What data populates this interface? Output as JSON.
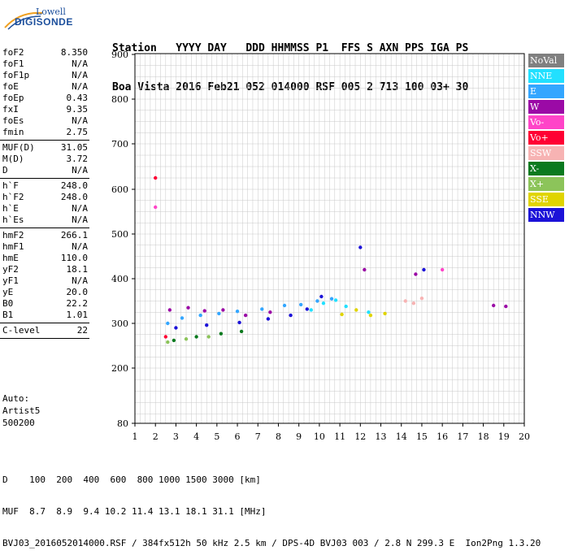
{
  "logo": {
    "line1": "Lowell",
    "line2": "DIGISONDE"
  },
  "header": {
    "labels": "Station   YYYY DAY   DDD HHMMSS P1  FFS S AXN PPS IGA PS",
    "values": "Boa Vista 2016 Feb21 052 014000 RSF 005 2 713 100 03+ 30"
  },
  "params": {
    "group1": [
      {
        "label": "foF2",
        "value": "8.350"
      },
      {
        "label": "foF1",
        "value": "N/A"
      },
      {
        "label": "foF1p",
        "value": "N/A"
      },
      {
        "label": "foE",
        "value": "N/A"
      },
      {
        "label": "foEp",
        "value": "0.43"
      },
      {
        "label": "fxI",
        "value": "9.35"
      },
      {
        "label": "foEs",
        "value": "N/A"
      },
      {
        "label": "fmin",
        "value": "2.75"
      }
    ],
    "group2": [
      {
        "label": "MUF(D)",
        "value": "31.05"
      },
      {
        "label": "M(D)",
        "value": "3.72"
      },
      {
        "label": "D",
        "value": "N/A"
      }
    ],
    "group3": [
      {
        "label": "h`F",
        "value": "248.0"
      },
      {
        "label": "h`F2",
        "value": "248.0"
      },
      {
        "label": "h`E",
        "value": "N/A"
      },
      {
        "label": "h`Es",
        "value": "N/A"
      }
    ],
    "group4": [
      {
        "label": "hmF2",
        "value": "266.1"
      },
      {
        "label": "hmF1",
        "value": "N/A"
      },
      {
        "label": "hmE",
        "value": "110.0"
      },
      {
        "label": "yF2",
        "value": "18.1"
      },
      {
        "label": "yF1",
        "value": "N/A"
      },
      {
        "label": "yE",
        "value": "20.0"
      },
      {
        "label": "B0",
        "value": "22.2"
      },
      {
        "label": "B1",
        "value": "1.01"
      }
    ],
    "group5": [
      {
        "label": "C-level",
        "value": "22"
      }
    ]
  },
  "auto": {
    "line1": "Auto:",
    "line2": "Artist5",
    "line3": "500200"
  },
  "chart_data": {
    "type": "scatter",
    "x_ticks": [
      "1",
      "2",
      "3",
      "4",
      "5",
      "6",
      "7",
      "8",
      "9",
      "10",
      "11",
      "12",
      "13",
      "14",
      "15",
      "16",
      "17",
      "18",
      "19",
      "20"
    ],
    "y_ticks": [
      "80",
      "200",
      "300",
      "400",
      "500",
      "600",
      "700",
      "800",
      "900"
    ],
    "xlim": [
      1,
      20
    ],
    "y_tick_values": [
      80,
      200,
      300,
      400,
      500,
      600,
      700,
      800,
      900
    ],
    "grid": true,
    "series": [
      {
        "name": "NoVal",
        "color": "#808080",
        "points": []
      },
      {
        "name": "NNE",
        "color": "#22e0ff",
        "points": [
          [
            9.6,
            330
          ],
          [
            10.2,
            345
          ],
          [
            10.8,
            352
          ],
          [
            11.3,
            338
          ],
          [
            12.4,
            325
          ]
        ]
      },
      {
        "name": "E",
        "color": "#33a6ff",
        "points": [
          [
            2.6,
            300
          ],
          [
            3.3,
            312
          ],
          [
            4.2,
            318
          ],
          [
            5.1,
            322
          ],
          [
            6.0,
            327
          ],
          [
            7.2,
            332
          ],
          [
            8.3,
            340
          ],
          [
            9.1,
            342
          ],
          [
            9.9,
            350
          ],
          [
            10.6,
            355
          ]
        ]
      },
      {
        "name": "W",
        "color": "#9b0aa6",
        "points": [
          [
            2.7,
            330
          ],
          [
            3.6,
            335
          ],
          [
            4.4,
            328
          ],
          [
            5.3,
            330
          ],
          [
            6.4,
            318
          ],
          [
            7.6,
            325
          ],
          [
            12.2,
            420
          ],
          [
            14.7,
            410
          ],
          [
            18.5,
            340
          ],
          [
            19.1,
            338
          ]
        ]
      },
      {
        "name": "Vo-",
        "color": "#ff44c8",
        "points": [
          [
            2.0,
            560
          ],
          [
            16.0,
            420
          ]
        ]
      },
      {
        "name": "Vo+",
        "color": "#ff0033",
        "points": [
          [
            2.0,
            625
          ],
          [
            2.5,
            270
          ]
        ]
      },
      {
        "name": "SSW",
        "color": "#f7b3b3",
        "points": [
          [
            14.2,
            350
          ],
          [
            14.6,
            345
          ],
          [
            15.0,
            356
          ]
        ]
      },
      {
        "name": "X-",
        "color": "#0a7a1f",
        "points": [
          [
            2.9,
            262
          ],
          [
            4.0,
            270
          ],
          [
            5.2,
            277
          ],
          [
            6.2,
            282
          ]
        ]
      },
      {
        "name": "X+",
        "color": "#8cc45a",
        "points": [
          [
            2.6,
            258
          ],
          [
            3.5,
            265
          ],
          [
            4.6,
            270
          ]
        ]
      },
      {
        "name": "SSE",
        "color": "#e0d400",
        "points": [
          [
            11.1,
            320
          ],
          [
            11.8,
            330
          ],
          [
            12.5,
            318
          ],
          [
            13.2,
            322
          ]
        ]
      },
      {
        "name": "NNW",
        "color": "#1c12d8",
        "points": [
          [
            3.0,
            290
          ],
          [
            4.5,
            296
          ],
          [
            6.1,
            302
          ],
          [
            7.5,
            310
          ],
          [
            8.6,
            318
          ],
          [
            9.4,
            332
          ],
          [
            10.1,
            360
          ],
          [
            12.0,
            470
          ],
          [
            15.1,
            420
          ]
        ]
      }
    ]
  },
  "legend": [
    {
      "label": "NoVal",
      "color": "#808080"
    },
    {
      "label": "NNE",
      "color": "#22e0ff"
    },
    {
      "label": "E",
      "color": "#33a6ff"
    },
    {
      "label": "W",
      "color": "#9b0aa6"
    },
    {
      "label": "Vo-",
      "color": "#ff44c8"
    },
    {
      "label": "Vo+",
      "color": "#ff0033"
    },
    {
      "label": "SSW",
      "color": "#f7b3b3"
    },
    {
      "label": "X-",
      "color": "#0a7a1f"
    },
    {
      "label": "X+",
      "color": "#8cc45a"
    },
    {
      "label": "SSE",
      "color": "#e0d400"
    },
    {
      "label": "NNW",
      "color": "#1c12d8"
    }
  ],
  "footer": {
    "line1": "D    100  200  400  600  800 1000 1500 3000 [km]",
    "line2": "MUF  8.7  8.9  9.4 10.2 11.4 13.1 18.1 31.1 [MHz]",
    "line3": "BVJ03_2016052014000.RSF / 384fx512h 50 kHz 2.5 km / DPS-4D BVJ03 003 / 2.8 N 299.3 E  Ion2Png 1.3.20"
  }
}
